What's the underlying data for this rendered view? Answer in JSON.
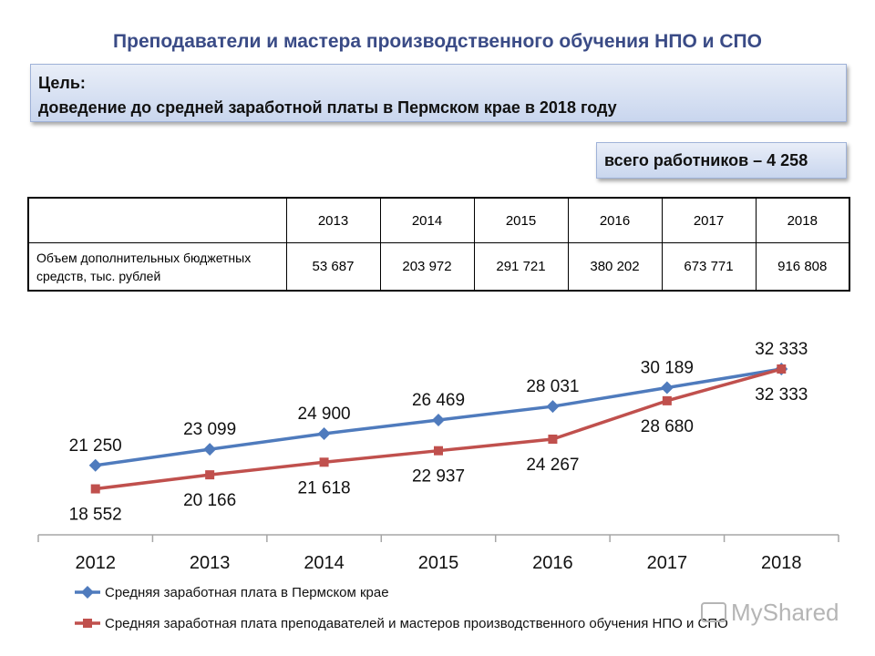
{
  "title": "Преподаватели и мастера производственного обучения НПО и СПО",
  "goal": {
    "line1": "Цель:",
    "line2": "доведение до средней заработной платы в Пермском крае в 2018 году"
  },
  "workers": "всего работников – 4 258",
  "table": {
    "header_blank": "",
    "years": [
      "2013",
      "2014",
      "2015",
      "2016",
      "2017",
      "2018"
    ],
    "row_label": "Объем дополнительных бюджетных средств, тыс. рублей",
    "values": [
      "53 687",
      "203 972",
      "291 721",
      "380 202",
      "673 771",
      "916 808"
    ]
  },
  "chart_data": {
    "type": "line",
    "categories": [
      "2012",
      "2013",
      "2014",
      "2015",
      "2016",
      "2017",
      "2018"
    ],
    "ylim": [
      14000,
      36000
    ],
    "series": [
      {
        "name": "Средняя заработная плата в Пермском крае",
        "color": "#4f7bbd",
        "marker": "diamond",
        "values": [
          21250,
          23099,
          24900,
          26469,
          28031,
          30189,
          32333
        ],
        "labels": [
          "21 250",
          "23 099",
          "24 900",
          "26 469",
          "28 031",
          "30 189",
          "32 333"
        ]
      },
      {
        "name": "Средняя заработная плата преподавателей и мастеров производственного обучения НПО и СПО",
        "color": "#c0504d",
        "marker": "square",
        "values": [
          18552,
          20166,
          21618,
          22937,
          24267,
          28680,
          32333
        ],
        "labels": [
          "18 552",
          "20 166",
          "21 618",
          "22 937",
          "24 267",
          "28 680",
          "32 333"
        ]
      }
    ]
  },
  "watermark": "MyShared"
}
